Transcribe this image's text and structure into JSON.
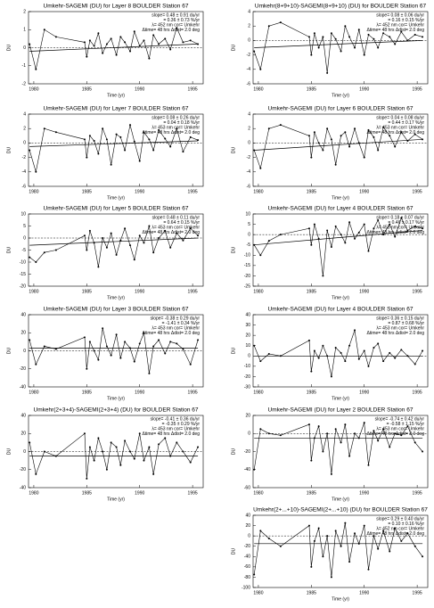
{
  "chart_data": [
    {
      "type": "line",
      "title": "Umkehr-SAGEMI (DU) for Layer 8 BOULDER Station 67",
      "stats": [
        "slope= 0.48 ± 0.91 du/yr",
        "= 0.36 ± 0.73 %/yr",
        "λ= 452 nm  cor= Umkehr",
        "Δtime= 48 hrs  Δdist= 2.0 deg"
      ],
      "x_label": "Time (yr)",
      "y_label": "DU",
      "color": "#000000",
      "x": [
        1979.6,
        1980.2,
        1981.0,
        1982.1,
        1984.8,
        1985.0,
        1985.3,
        1985.7,
        1986.1,
        1986.5,
        1986.9,
        1987.3,
        1987.8,
        1988.2,
        1988.6,
        1989.1,
        1989.5,
        1990.0,
        1990.4,
        1990.9,
        1991.3,
        1991.8,
        1992.4,
        1992.9,
        1993.5,
        1994.1,
        1994.8,
        1995.5
      ],
      "values": [
        0.2,
        -1.2,
        1.0,
        0.6,
        0.3,
        -0.5,
        0.4,
        0.1,
        0.8,
        -0.3,
        0.2,
        0.5,
        -0.4,
        0.6,
        0.3,
        -0.2,
        0.9,
        0.1,
        0.4,
        -0.6,
        0.7,
        0.2,
        0.5,
        -0.1,
        1.1,
        0.3,
        0.4,
        0.2
      ],
      "trend": {
        "x": [
          1979.6,
          1995.5
        ],
        "values": [
          -0.2,
          0.2
        ]
      },
      "xlim": [
        1979.5,
        1996
      ],
      "xticks": [
        1980,
        1985,
        1990,
        1995
      ],
      "ylim": [
        -2,
        2
      ],
      "yticks": [
        -2,
        -1,
        0,
        1,
        2
      ]
    },
    {
      "type": "line",
      "title": "Umkehr-SAGEMI (DU) for Layer 7 BOULDER Station 67",
      "stats": [
        "slope= 0.08 ± 0.26 du/yr",
        "= 0.04 ± 0.18 %/yr",
        "λ= 453 nm  cor= Umkehr",
        "Δtime= 48 hrs  Δdist= 2.0 deg"
      ],
      "x_label": "Time (yr)",
      "y_label": "DU",
      "color": "#000000",
      "x": [
        1979.6,
        1980.2,
        1981.0,
        1982.1,
        1984.8,
        1985.0,
        1985.3,
        1985.7,
        1986.1,
        1986.5,
        1986.9,
        1987.3,
        1987.8,
        1988.2,
        1988.6,
        1989.1,
        1989.5,
        1990.0,
        1990.4,
        1990.9,
        1991.3,
        1991.8,
        1992.4,
        1992.9,
        1993.5,
        1994.1,
        1994.8,
        1995.5
      ],
      "values": [
        -1,
        -4,
        2,
        1.5,
        0.5,
        -2,
        1,
        0.3,
        -1.5,
        2,
        0.5,
        -3,
        1.2,
        0.8,
        -1,
        2.5,
        0.2,
        -2.5,
        1.5,
        0.5,
        -1,
        1.8,
        0.6,
        -0.5,
        2,
        -1.2,
        0.8,
        0.4
      ],
      "trend": {
        "x": [
          1979.6,
          1995.5
        ],
        "values": [
          -0.5,
          0.3
        ]
      },
      "xlim": [
        1979.5,
        1996
      ],
      "xticks": [
        1980,
        1985,
        1990,
        1995
      ],
      "ylim": [
        -6,
        4
      ],
      "yticks": [
        -6,
        -4,
        -2,
        0,
        2,
        4
      ]
    },
    {
      "type": "line",
      "title": "Umkehr-SAGEMI (DU) for Layer 5 BOULDER Station 67",
      "stats": [
        "slope= 0.48 ± 0.11 du/yr",
        "= 0.64 ± 0.15 %/yr",
        "λ= 453 nm  cor= Umkehr",
        "Δtime= 48 hrs  Δdist= 2.0 deg"
      ],
      "x_label": "Time (yr)",
      "y_label": "DU",
      "color": "#000000",
      "x": [
        1979.6,
        1980.2,
        1981.0,
        1982.1,
        1984.8,
        1985.0,
        1985.3,
        1985.7,
        1986.1,
        1986.5,
        1986.9,
        1987.3,
        1987.8,
        1988.2,
        1988.6,
        1989.1,
        1989.5,
        1990.0,
        1990.4,
        1990.9,
        1991.3,
        1991.8,
        1992.4,
        1992.9,
        1993.5,
        1994.1,
        1994.8,
        1995.5
      ],
      "values": [
        -8,
        -10,
        -6,
        -5,
        1,
        -5,
        3,
        -2,
        -12,
        0,
        -4,
        2,
        -7,
        -1,
        4,
        -3,
        -9,
        1,
        -2,
        5,
        -6,
        0,
        3,
        -4,
        2,
        -1,
        4,
        1
      ],
      "trend": {
        "x": [
          1979.6,
          1995.5
        ],
        "values": [
          -3,
          0
        ]
      },
      "xlim": [
        1979.5,
        1996
      ],
      "xticks": [
        1980,
        1985,
        1990,
        1995
      ],
      "ylim": [
        -20,
        10
      ],
      "yticks": [
        -20,
        -15,
        -10,
        -5,
        0,
        5,
        10
      ]
    },
    {
      "type": "line",
      "title": "Umkehr-SAGEMI (DU) for Layer 3 BOULDER Station 67",
      "stats": [
        "slope= -0.38 ± 0.29 du/yr",
        "= -1.41 ± 0.34 %/yr",
        "λ= 453 nm  cor= Umkehr",
        "Δtime= 48 hrs  Δdist= 2.0 deg"
      ],
      "x_label": "Time (yr)",
      "y_label": "DU",
      "color": "#000000",
      "x": [
        1979.6,
        1980.2,
        1981.0,
        1982.1,
        1984.8,
        1985.0,
        1985.3,
        1985.7,
        1986.1,
        1986.5,
        1986.9,
        1987.3,
        1987.8,
        1988.2,
        1988.6,
        1989.1,
        1989.5,
        1990.0,
        1990.4,
        1990.9,
        1991.3,
        1991.8,
        1992.4,
        1992.9,
        1993.5,
        1994.1,
        1994.8,
        1995.5
      ],
      "values": [
        12,
        -15,
        5,
        2,
        15,
        -20,
        10,
        0,
        -10,
        25,
        5,
        -5,
        18,
        -8,
        10,
        3,
        -12,
        8,
        20,
        -25,
        5,
        12,
        -3,
        10,
        8,
        2,
        -15,
        12
      ],
      "trend": {
        "x": [
          1979.6,
          1995.5
        ],
        "values": [
          3,
          3
        ]
      },
      "xlim": [
        1979.5,
        1996
      ],
      "xticks": [
        1980,
        1985,
        1990,
        1995
      ],
      "ylim": [
        -40,
        40
      ],
      "yticks": [
        -40,
        -20,
        0,
        20,
        40
      ]
    },
    {
      "type": "line",
      "title": "Umkehr(2+3+4)-SAGEMI(2+3+4) (DU) for BOULDER Station 67",
      "stats": [
        "slope= -0.41 ± 0.36 du/yr",
        "= -0.35 ± 0.29 %/yr",
        "λ= 453 nm  cor= Umkehr",
        "Δtime= 48 hrs  Δdist= 2.0 deg"
      ],
      "x_label": "Time (yr)",
      "y_label": "DU",
      "color": "#000000",
      "x": [
        1979.6,
        1980.2,
        1981.0,
        1982.1,
        1984.8,
        1985.0,
        1985.3,
        1985.7,
        1986.1,
        1986.5,
        1986.9,
        1987.3,
        1987.8,
        1988.2,
        1988.6,
        1989.1,
        1989.5,
        1990.0,
        1990.4,
        1990.9,
        1991.3,
        1991.8,
        1992.4,
        1992.9,
        1993.5,
        1994.1,
        1994.8,
        1995.5
      ],
      "values": [
        10,
        -25,
        0,
        -5,
        20,
        -30,
        5,
        -10,
        15,
        0,
        -20,
        10,
        5,
        -15,
        12,
        0,
        -8,
        20,
        -10,
        5,
        -25,
        8,
        15,
        -5,
        10,
        0,
        -12,
        5
      ],
      "trend": {
        "x": [
          1979.6,
          1995.5
        ],
        "values": [
          -5,
          -5
        ]
      },
      "xlim": [
        1979.5,
        1996
      ],
      "xticks": [
        1980,
        1985,
        1990,
        1995
      ],
      "ylim": [
        -40,
        40
      ],
      "yticks": [
        -40,
        -20,
        0,
        20,
        40
      ]
    },
    {
      "type": "line",
      "title": "Umkehr(8+9+10)-SAGEMI(8+9+10) (DU) for BOULDER Station 67",
      "stats": [
        "slope= 0.08 ± 0.06 du/yr",
        "= 0.16 ± 0.15 %/yr",
        "λ= 452 nm  cor= Umkehr",
        "Δtime= 48 hrs  Δdist= 2.0 deg"
      ],
      "x_label": "Time (yr)",
      "y_label": "DU",
      "color": "#000000",
      "x": [
        1979.6,
        1980.2,
        1981.0,
        1982.1,
        1984.8,
        1985.0,
        1985.3,
        1985.7,
        1986.1,
        1986.5,
        1986.9,
        1987.3,
        1987.8,
        1988.2,
        1988.6,
        1989.1,
        1989.5,
        1990.0,
        1990.4,
        1990.9,
        1991.3,
        1991.8,
        1992.4,
        1992.9,
        1993.5,
        1994.1,
        1994.8,
        1995.5
      ],
      "values": [
        -1.5,
        -4,
        2,
        2.5,
        0.5,
        -2,
        1,
        -1,
        0.5,
        -4.5,
        1,
        0.2,
        -1.5,
        2,
        0.5,
        -1,
        1.5,
        -2,
        0.8,
        0.2,
        -1,
        1,
        0.5,
        -0.5,
        1.2,
        0,
        0.8,
        0.5
      ],
      "trend": {
        "x": [
          1979.6,
          1995.5
        ],
        "values": [
          -1,
          0
        ]
      },
      "xlim": [
        1979.5,
        1996
      ],
      "xticks": [
        1980,
        1985,
        1990,
        1995
      ],
      "ylim": [
        -6,
        4
      ],
      "yticks": [
        -6,
        -4,
        -2,
        0,
        2,
        4
      ]
    },
    {
      "type": "line",
      "title": "Umkehr-SAGEMI (DU) for Layer 6 BOULDER Station 67",
      "stats": [
        "slope= 0.04 ± 0.08 du/yr",
        "= 0.44 ± 0.17 %/yr",
        "λ= 453 nm  cor= Umkehr",
        "Δtime= 48 hrs  Δdist= 2.0 deg"
      ],
      "x_label": "Time (yr)",
      "y_label": "DU",
      "color": "#000000",
      "x": [
        1979.6,
        1980.2,
        1981.0,
        1982.1,
        1984.8,
        1985.0,
        1985.3,
        1985.7,
        1986.1,
        1986.5,
        1986.9,
        1987.3,
        1987.8,
        1988.2,
        1988.6,
        1989.1,
        1989.5,
        1990.0,
        1990.4,
        1990.9,
        1991.3,
        1991.8,
        1992.4,
        1992.9,
        1993.5,
        1994.1,
        1994.8,
        1995.5
      ],
      "values": [
        -1,
        -3.5,
        2,
        2.5,
        1,
        -2,
        1.5,
        0,
        -1,
        2,
        0.5,
        -3,
        1,
        1.5,
        -0.5,
        2,
        0,
        -2,
        1.8,
        0.8,
        -1,
        2.2,
        1,
        -0.5,
        1.5,
        0.3,
        1.2,
        0.5
      ],
      "trend": {
        "x": [
          1979.6,
          1995.5
        ],
        "values": [
          -1,
          0.5
        ]
      },
      "xlim": [
        1979.5,
        1996
      ],
      "xticks": [
        1980,
        1985,
        1990,
        1995
      ],
      "ylim": [
        -6,
        4
      ],
      "yticks": [
        -6,
        -4,
        -2,
        0,
        2,
        4
      ]
    },
    {
      "type": "line",
      "title": "Umkehr-SAGEMI (DU) for Layer 4 BOULDER Station 67",
      "stats": [
        "slope= 0.18 ± 0.07 du/yr",
        "= 0.46 ± 0.17 %/yr",
        "λ= 453 nm  cor= Umkehr",
        "Δtime= 48 hrs  Δdist= 2.0 deg"
      ],
      "x_label": "Time (yr)",
      "y_label": "DU",
      "color": "#000000",
      "x": [
        1979.6,
        1980.2,
        1981.0,
        1982.1,
        1984.8,
        1985.0,
        1985.3,
        1985.7,
        1986.1,
        1986.5,
        1986.9,
        1987.3,
        1987.8,
        1988.2,
        1988.6,
        1989.1,
        1989.5,
        1990.0,
        1990.4,
        1990.9,
        1991.3,
        1991.8,
        1992.4,
        1992.9,
        1993.5,
        1994.1,
        1994.8,
        1995.5
      ],
      "values": [
        -5,
        -10,
        -3,
        0,
        3,
        -5,
        5,
        -2,
        -20,
        2,
        -6,
        4,
        0,
        -4,
        6,
        -2,
        1,
        5,
        -8,
        3,
        7,
        0,
        5,
        -1,
        8,
        2,
        4,
        3
      ],
      "trend": {
        "x": [
          1979.6,
          1995.5
        ],
        "values": [
          -5,
          2
        ]
      },
      "xlim": [
        1979.5,
        1996
      ],
      "xticks": [
        1980,
        1985,
        1990,
        1995
      ],
      "ylim": [
        -25,
        10
      ],
      "yticks": [
        -25,
        -20,
        -15,
        -10,
        -5,
        0,
        5,
        10
      ]
    },
    {
      "type": "line",
      "title": "Umkehr-SAGEMI (DU) for Layer 4 BOULDER Station 67",
      "stats": [
        "slope= 0.36 ± 0.15 du/yr",
        "= 0.87 ± 0.68 %/yr",
        "λ= 453 nm  cor= Umkehr",
        "Δtime= 48 hrs  Δdist= 2.0 deg"
      ],
      "x_label": "Time (yr)",
      "y_label": "DU",
      "color": "#000000",
      "x": [
        1979.6,
        1980.2,
        1981.0,
        1982.1,
        1984.8,
        1985.0,
        1985.3,
        1985.7,
        1986.1,
        1986.5,
        1986.9,
        1987.3,
        1987.8,
        1988.2,
        1988.6,
        1989.1,
        1989.5,
        1990.0,
        1990.4,
        1990.9,
        1991.3,
        1991.8,
        1992.4,
        1992.9,
        1993.5,
        1994.1,
        1994.8,
        1995.5
      ],
      "values": [
        10,
        -5,
        2,
        0,
        15,
        -15,
        5,
        -2,
        10,
        0,
        -20,
        8,
        3,
        -5,
        10,
        25,
        -3,
        5,
        -10,
        8,
        12,
        -5,
        3,
        -2,
        6,
        0,
        -8,
        5
      ],
      "trend": {
        "x": [
          1979.6,
          1995.5
        ],
        "values": [
          0,
          0
        ]
      },
      "xlim": [
        1979.5,
        1996
      ],
      "xticks": [
        1980,
        1985,
        1990,
        1995
      ],
      "ylim": [
        -30,
        40
      ],
      "yticks": [
        -30,
        -20,
        -10,
        0,
        10,
        20,
        30,
        40
      ]
    },
    {
      "type": "line",
      "title": "Umkehr-SAGEMI (DU) for Layer 2 BOULDER Station 67",
      "stats": [
        "slope= -0.74 ± 0.42 du/yr",
        "= -0.58 ± 1.15 %/yr",
        "λ= 453 nm  cor= Umkehr",
        "Δtime= 48 hrs  Δdist= 2.0 deg"
      ],
      "x_label": "Time (yr)",
      "y_label": "DU",
      "color": "#000000",
      "x": [
        1979.6,
        1980.2,
        1981.0,
        1982.1,
        1984.8,
        1985.0,
        1985.3,
        1985.7,
        1986.1,
        1986.5,
        1986.9,
        1987.3,
        1987.8,
        1988.2,
        1988.6,
        1989.1,
        1989.5,
        1990.0,
        1990.4,
        1990.9,
        1991.3,
        1991.8,
        1992.4,
        1992.9,
        1993.5,
        1994.1,
        1994.8,
        1995.5
      ],
      "values": [
        -40,
        5,
        0,
        -2,
        10,
        -30,
        -5,
        8,
        -20,
        0,
        -45,
        5,
        -10,
        10,
        -25,
        0,
        -5,
        12,
        -35,
        3,
        -8,
        5,
        -15,
        0,
        -2,
        8,
        -10,
        -20
      ],
      "trend": {
        "x": [
          1979.6,
          1995.5
        ],
        "values": [
          -5,
          -5
        ]
      },
      "xlim": [
        1979.5,
        1996
      ],
      "xticks": [
        1980,
        1985,
        1990,
        1995
      ],
      "ylim": [
        -60,
        20
      ],
      "yticks": [
        -60,
        -40,
        -20,
        0,
        20
      ]
    },
    {
      "type": "line",
      "title": "Umkehr(2+...+10)-SAGEMI(2+...+10) (DU) for BOULDER Station 67",
      "stats": [
        "slope= 0.29 ± 0.40 du/yr",
        "= 0.10 ± 0.16 %/yr",
        "λ= 452 nm  cor= Umkehr",
        "Δtime= 48 hrs  Δdist= 2.0 deg"
      ],
      "x_label": "Time (yr)",
      "y_label": "DU",
      "color": "#000000",
      "x": [
        1979.6,
        1980.2,
        1981.0,
        1982.1,
        1984.8,
        1985.0,
        1985.3,
        1985.7,
        1986.1,
        1986.5,
        1986.9,
        1987.3,
        1987.8,
        1988.2,
        1988.6,
        1989.1,
        1989.5,
        1990.0,
        1990.4,
        1990.9,
        1991.3,
        1991.8,
        1992.4,
        1992.9,
        1993.5,
        1994.1,
        1994.8,
        1995.5
      ],
      "values": [
        -75,
        10,
        -5,
        -20,
        20,
        -60,
        -10,
        15,
        -40,
        0,
        -80,
        10,
        -20,
        25,
        -50,
        5,
        -15,
        20,
        -65,
        0,
        -25,
        10,
        -30,
        15,
        -10,
        5,
        -20,
        -40
      ],
      "trend": {
        "x": [
          1979.6,
          1995.5
        ],
        "values": [
          -15,
          -15
        ]
      },
      "xlim": [
        1979.5,
        1996
      ],
      "xticks": [
        1980,
        1985,
        1990,
        1995
      ],
      "ylim": [
        -100,
        40
      ],
      "yticks": [
        -100,
        -80,
        -60,
        -40,
        -20,
        0,
        20,
        40
      ]
    }
  ]
}
